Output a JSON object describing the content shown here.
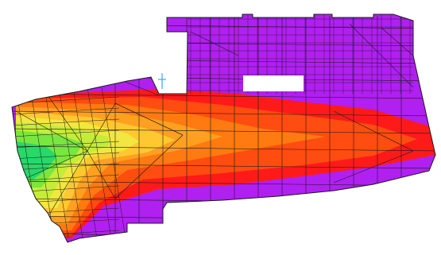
{
  "canvas": {
    "background": "#ffffff"
  },
  "colors": {
    "low": "#b020f0",
    "max": "#ff1a1a",
    "ramp": [
      "#b020f0",
      "#ff1a1a",
      "#ff4c10",
      "#ff7a10",
      "#ffa020",
      "#ffc830",
      "#f2e640",
      "#c6ec3a",
      "#7ae640",
      "#28d868"
    ],
    "mesh_line": "#1a1a1a",
    "support_marker": "#33a8ff",
    "hole": "#ffffff"
  },
  "legend": null
}
